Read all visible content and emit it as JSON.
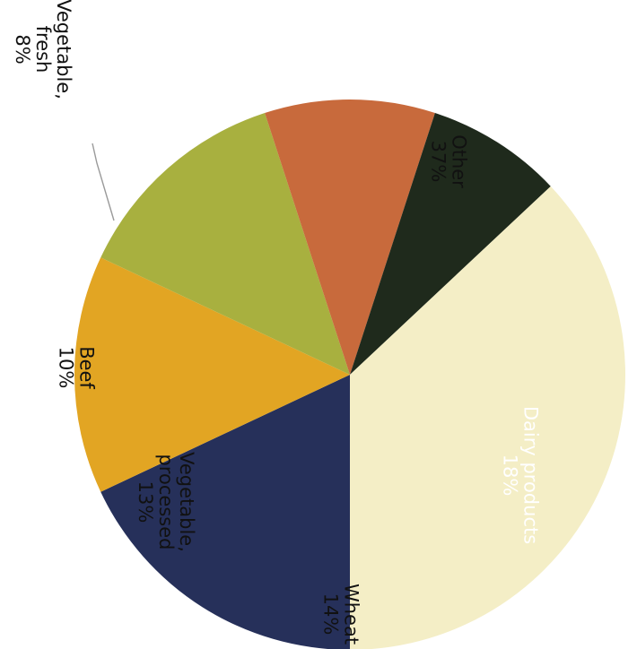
{
  "chart_data": {
    "type": "pie",
    "rotated": "90deg clockwise",
    "slices": [
      {
        "name": "Dairy products",
        "label_lines": [
          "Dairy products",
          "18%"
        ],
        "value": 18,
        "color": "#26305a",
        "light_text": true
      },
      {
        "name": "Wheat",
        "label_lines": [
          "Wheat",
          "14%"
        ],
        "value": 14,
        "color": "#e2a523",
        "light_text": false
      },
      {
        "name": "Vegetable, processed",
        "label_lines": [
          "Vegetable,",
          "processed",
          "13%"
        ],
        "value": 13,
        "color": "#a8b03f",
        "light_text": false
      },
      {
        "name": "Beef",
        "label_lines": [
          "Beef",
          "10%"
        ],
        "value": 10,
        "color": "#c86a3c",
        "light_text": false
      },
      {
        "name": "Vegetable, fresh",
        "label_lines": [
          "Vegetable,",
          "fresh",
          "8%"
        ],
        "value": 8,
        "color": "#1f2a1c",
        "light_text": false
      },
      {
        "name": "Other",
        "label_lines": [
          "Other",
          "37%"
        ],
        "value": 37,
        "color": "#f4eec6",
        "light_text": false
      }
    ]
  }
}
